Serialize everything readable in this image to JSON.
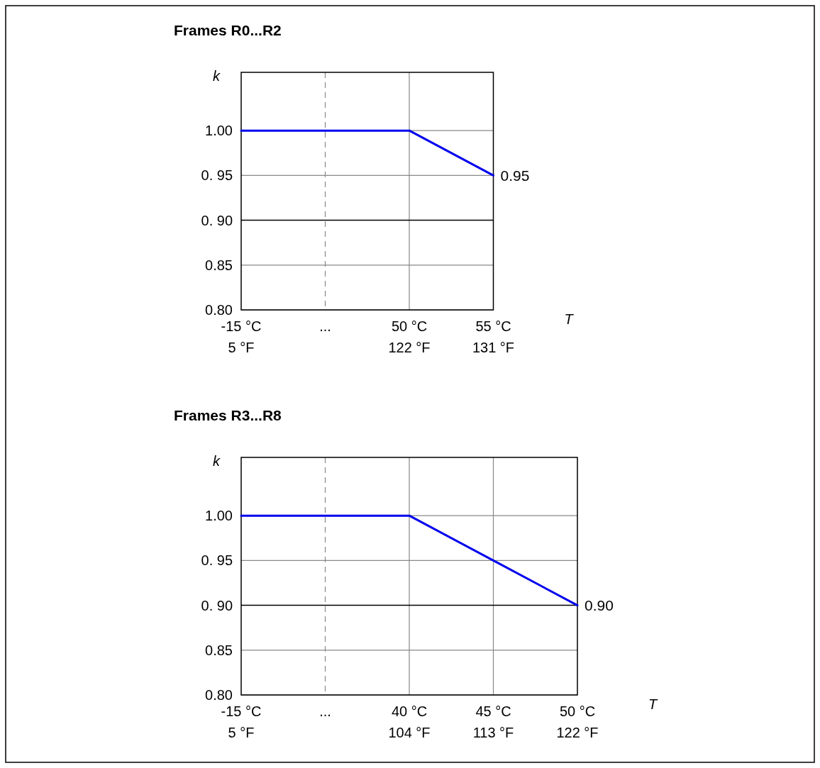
{
  "chart_data": [
    {
      "type": "line",
      "title": "Frames R0...R2",
      "xlabel": "T",
      "ylabel": "k",
      "categories": [
        "-15 °C\n5 °F",
        "...",
        "50 °C\n122 °F",
        "55 °C\n131 °F"
      ],
      "series": [
        {
          "color": "#0000ee",
          "values": [
            1.0,
            1.0,
            1.0,
            0.95
          ],
          "value_labels": [
            null,
            null,
            null,
            "0.95"
          ]
        }
      ],
      "ylim": [
        0.8,
        1.065
      ],
      "yticks": [
        {
          "value": 0.8,
          "label": "0.80"
        },
        0.85,
        {
          "value": 0.9,
          "label": "0. 90"
        },
        {
          "value": 0.95,
          "label": "0. 95"
        },
        {
          "value": 1.0,
          "label": "1.00"
        }
      ],
      "grid": true,
      "marker": "none",
      "line_style": "solid",
      "ref_lines": [
        {
          "axis": "y",
          "value": 0.9,
          "color": "#000000"
        },
        {
          "axis": "x",
          "value": "...",
          "color": "#888888",
          "line_style": "dashed"
        }
      ]
    },
    {
      "type": "line",
      "title": "Frames R3...R8",
      "xlabel": "T",
      "ylabel": "k",
      "categories": [
        "-15 °C\n5 °F",
        "...",
        "40 °C\n104 °F",
        "45 °C\n113 °F",
        "50 °C\n122 °F"
      ],
      "series": [
        {
          "color": "#0000ee",
          "values": [
            1.0,
            1.0,
            1.0,
            0.95,
            0.9
          ],
          "value_labels": [
            null,
            null,
            null,
            null,
            "0.90"
          ]
        }
      ],
      "ylim": [
        0.8,
        1.065
      ],
      "yticks": [
        {
          "value": 0.8,
          "label": "0.80"
        },
        0.85,
        {
          "value": 0.9,
          "label": "0. 90"
        },
        {
          "value": 0.95,
          "label": "0. 95"
        },
        {
          "value": 1.0,
          "label": "1.00"
        }
      ],
      "grid": true,
      "marker": "none",
      "line_style": "solid",
      "ref_lines": [
        {
          "axis": "y",
          "value": 0.9,
          "color": "#000000"
        },
        {
          "axis": "x",
          "value": "...",
          "color": "#888888",
          "line_style": "dashed"
        }
      ]
    }
  ]
}
